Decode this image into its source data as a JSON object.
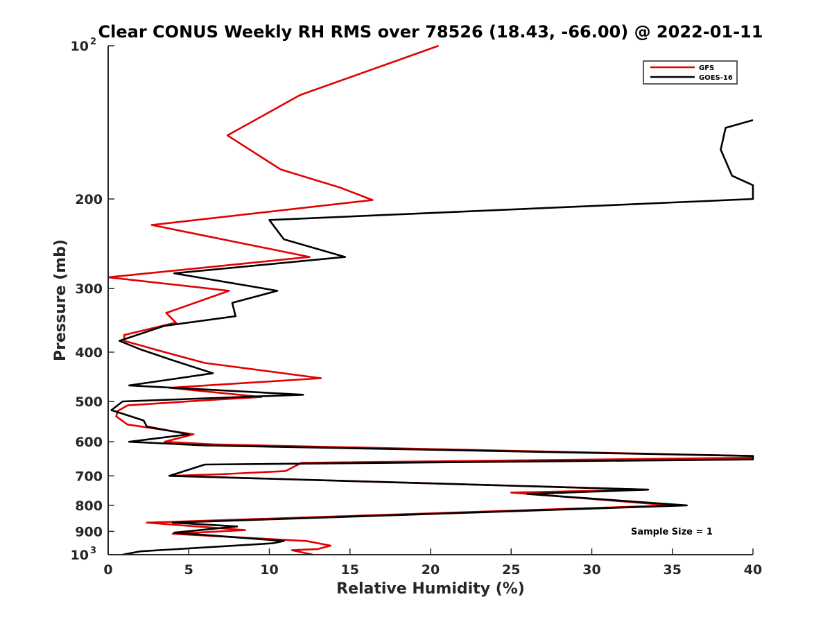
{
  "chart_data": {
    "type": "line",
    "title": "Clear CONUS Weekly RH RMS over 78526 (18.43, -66.00) @ 2022-01-11",
    "xlabel": "Relative Humidity (%)",
    "ylabel": "Pressure (mb)",
    "xlim": [
      0,
      40
    ],
    "ylim": [
      1000,
      100
    ],
    "yscale": "log",
    "y_reversed": true,
    "grid": false,
    "legend_position": "top-right",
    "x_ticks": [
      "0",
      "5",
      "10",
      "15",
      "20",
      "25",
      "30",
      "35",
      "40"
    ],
    "y_ticks": [
      {
        "value": 100,
        "base": "10",
        "exp": "2"
      },
      {
        "value": 200,
        "label": "200"
      },
      {
        "value": 300,
        "label": "300"
      },
      {
        "value": 400,
        "label": "400"
      },
      {
        "value": 500,
        "label": "500"
      },
      {
        "value": 600,
        "label": "600"
      },
      {
        "value": 700,
        "label": "700"
      },
      {
        "value": 800,
        "label": "800"
      },
      {
        "value": 900,
        "label": "900"
      },
      {
        "value": 1000,
        "base": "10",
        "exp": "3"
      }
    ],
    "annotation": "Sample Size = 1",
    "series": [
      {
        "name": "GFS",
        "color": "#e30000",
        "points": [
          [
            20.5,
            100
          ],
          [
            11.9,
            125
          ],
          [
            7.4,
            150
          ],
          [
            10.7,
            175
          ],
          [
            14.4,
            190
          ],
          [
            16.4,
            201
          ],
          [
            2.7,
            225
          ],
          [
            12.5,
            260
          ],
          [
            0.0,
            285
          ],
          [
            7.5,
            303
          ],
          [
            3.6,
            335
          ],
          [
            4.2,
            350
          ],
          [
            1.0,
            370
          ],
          [
            1.0,
            380
          ],
          [
            3.5,
            400
          ],
          [
            6.0,
            420
          ],
          [
            13.2,
            450
          ],
          [
            3.8,
            470
          ],
          [
            9.5,
            490
          ],
          [
            6.2,
            497
          ],
          [
            1.2,
            509
          ],
          [
            0.6,
            522
          ],
          [
            0.5,
            535
          ],
          [
            1.2,
            555
          ],
          [
            5.3,
            580
          ],
          [
            3.5,
            600
          ],
          [
            6.5,
            607
          ],
          [
            40.0,
            640
          ],
          [
            40.0,
            645
          ],
          [
            12.0,
            660
          ],
          [
            11.0,
            685
          ],
          [
            7.0,
            695
          ],
          [
            3.8,
            700
          ],
          [
            33.5,
            745
          ],
          [
            25.0,
            755
          ],
          [
            35.0,
            800
          ],
          [
            2.4,
            865
          ],
          [
            8.5,
            895
          ],
          [
            4.0,
            910
          ],
          [
            12.3,
            940
          ],
          [
            13.8,
            960
          ],
          [
            13.0,
            975
          ],
          [
            11.4,
            980
          ],
          [
            12.7,
            1000
          ]
        ]
      },
      {
        "name": "GOES-16",
        "color": "#000000",
        "points": [
          [
            40.0,
            140
          ],
          [
            38.3,
            145
          ],
          [
            38.0,
            160
          ],
          [
            38.7,
            180
          ],
          [
            40.0,
            188
          ],
          [
            40.0,
            200
          ],
          [
            10.0,
            220
          ],
          [
            10.9,
            240
          ],
          [
            14.7,
            260
          ],
          [
            4.1,
            280
          ],
          [
            10.5,
            303
          ],
          [
            7.7,
            320
          ],
          [
            7.9,
            340
          ],
          [
            3.5,
            355
          ],
          [
            0.7,
            380
          ],
          [
            2.0,
            395
          ],
          [
            4.0,
            415
          ],
          [
            6.5,
            440
          ],
          [
            1.3,
            465
          ],
          [
            12.1,
            485
          ],
          [
            0.9,
            500
          ],
          [
            0.2,
            520
          ],
          [
            2.2,
            545
          ],
          [
            2.4,
            560
          ],
          [
            5.0,
            580
          ],
          [
            1.3,
            600
          ],
          [
            6.0,
            610
          ],
          [
            40.0,
            640
          ],
          [
            40.0,
            650
          ],
          [
            6.0,
            665
          ],
          [
            3.8,
            700
          ],
          [
            33.5,
            745
          ],
          [
            26.0,
            760
          ],
          [
            35.9,
            800
          ],
          [
            4.0,
            865
          ],
          [
            8.0,
            880
          ],
          [
            4.1,
            905
          ],
          [
            10.9,
            940
          ],
          [
            10.2,
            950
          ],
          [
            2.0,
            985
          ],
          [
            0.9,
            1000
          ]
        ]
      }
    ]
  }
}
